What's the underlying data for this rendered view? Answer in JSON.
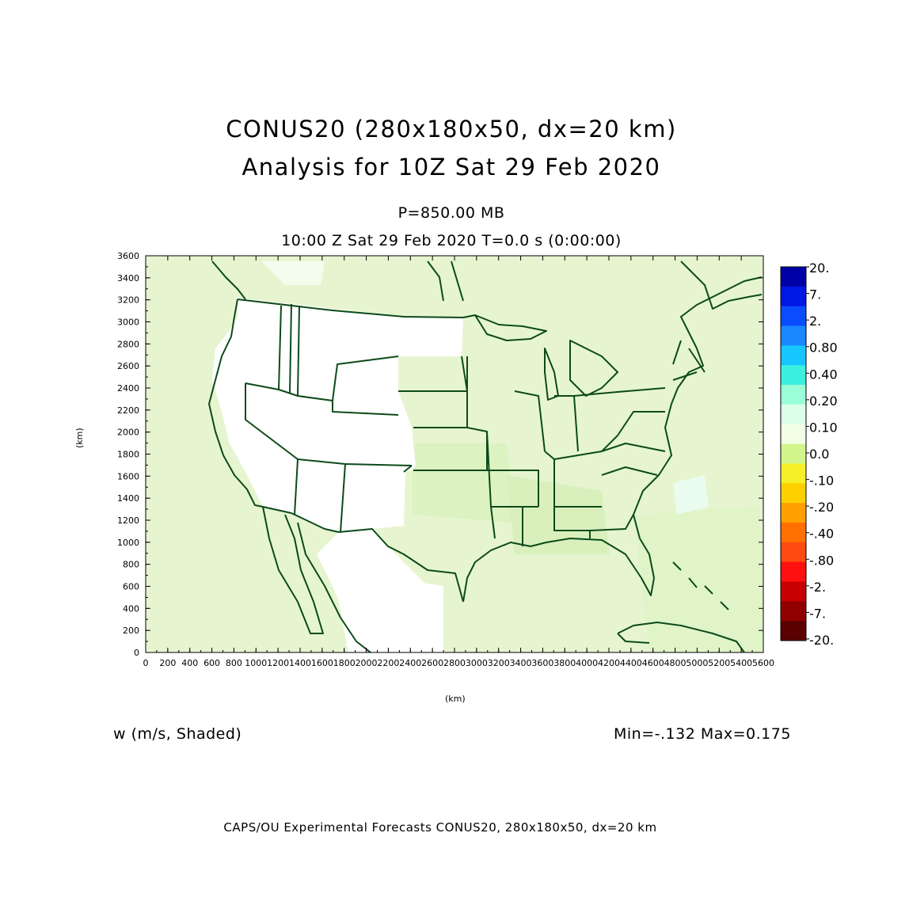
{
  "header": {
    "title_line1": "CONUS20 (280x180x50, dx=20 km)",
    "title_line2": "Analysis for 10Z Sat 29 Feb 2020",
    "level": "P=850.00 MB",
    "time_line": "10:00 Z Sat 29 Feb 2020   T=0.0 s (0:00:00)"
  },
  "plot": {
    "x_unit": "(km)",
    "y_unit": "(km)",
    "x_ticks": [
      0,
      200,
      400,
      600,
      800,
      1000,
      1200,
      1400,
      1600,
      1800,
      2000,
      2200,
      2400,
      2600,
      2800,
      3000,
      3200,
      3400,
      3600,
      3800,
      4000,
      4200,
      4400,
      4600,
      4800,
      5000,
      5200,
      5400,
      5600
    ],
    "y_ticks": [
      0,
      200,
      400,
      600,
      800,
      1000,
      1200,
      1400,
      1600,
      1800,
      2000,
      2200,
      2400,
      2600,
      2800,
      3000,
      3200,
      3400,
      3600
    ],
    "x_range": [
      0,
      5600
    ],
    "y_range": [
      0,
      3600
    ],
    "field_fill": "#e6f5d0",
    "boundary_color": "#0c4a1a"
  },
  "colorbar": {
    "labels": [
      "20.",
      "7.",
      "2.",
      "0.80",
      "0.40",
      "0.20",
      "0.10",
      "0.0",
      "-.10",
      "-.20",
      "-.40",
      "-.80",
      "-2.",
      "-7.",
      "-20."
    ],
    "colors": [
      "#0000a8",
      "#0018e6",
      "#0a4dff",
      "#1a87ff",
      "#17c5ff",
      "#3cf0e0",
      "#9affd8",
      "#dcffe8",
      "#f2ffe6",
      "#d2f58c",
      "#f6f028",
      "#ffd000",
      "#ffa000",
      "#ff7000",
      "#ff4a10",
      "#ff1010",
      "#c80000",
      "#900000",
      "#5a0000"
    ]
  },
  "footer": {
    "field_label": "w (m/s, Shaded)",
    "minmax": "Min=-.132 Max=0.175",
    "credit": "CAPS/OU Experimental Forecasts  CONUS20, 280x180x50, dx=20 km"
  }
}
